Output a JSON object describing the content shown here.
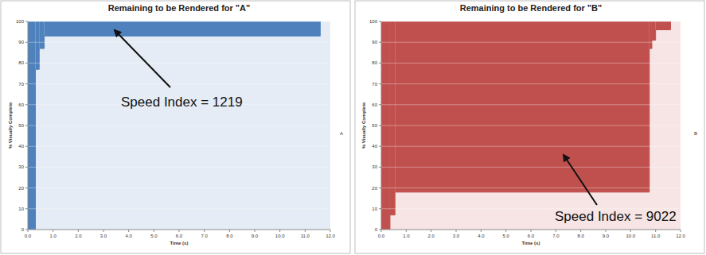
{
  "chart_data": [
    {
      "type": "step_area",
      "title": "Remaining to be Rendered for \"A\"",
      "x_label": "Time (s)",
      "y_label": "% Visually Complete",
      "annotation": "Speed Index = 1219",
      "series": [
        {
          "name": "A",
          "color": "#4f81bd",
          "x": [
            0,
            0.3,
            0.45,
            0.65,
            11.6
          ],
          "values": [
            0,
            77,
            87,
            93,
            100
          ]
        }
      ],
      "xlim": [
        0,
        12
      ],
      "ylim": [
        0,
        100
      ],
      "xticks": [
        {
          "value": 0,
          "label": "0.0"
        },
        {
          "value": 1,
          "label": "1.0"
        },
        {
          "value": 2,
          "label": "2.0"
        },
        {
          "value": 3,
          "label": "3.0"
        },
        {
          "value": 4,
          "label": "4.0"
        },
        {
          "value": 5,
          "label": "5.0"
        },
        {
          "value": 6,
          "label": "6.0"
        },
        {
          "value": 7,
          "label": "7.0"
        },
        {
          "value": 8,
          "label": "8.0"
        },
        {
          "value": 9,
          "label": "9.0"
        },
        {
          "value": 10,
          "label": "10.0"
        },
        {
          "value": 11,
          "label": "11.0"
        },
        {
          "value": 12,
          "label": "12.0"
        }
      ],
      "yticks": [
        0,
        10,
        20,
        30,
        40,
        50,
        60,
        70,
        80,
        90,
        100
      ],
      "grid": true
    },
    {
      "type": "step_area",
      "title": "Remaining to be Rendered for \"B\"",
      "x_label": "Time (s)",
      "y_label": "% Visually Complete",
      "annotation": "Speed Index = 9022",
      "series": [
        {
          "name": "B",
          "color": "#c0504d",
          "x": [
            0,
            0.35,
            0.55,
            10.75,
            10.85,
            11.0,
            11.6
          ],
          "values": [
            0,
            7,
            18,
            87,
            91,
            96,
            100
          ]
        }
      ],
      "xlim": [
        0,
        12
      ],
      "ylim": [
        0,
        100
      ],
      "xticks": [
        {
          "value": 0,
          "label": "0.0"
        },
        {
          "value": 1,
          "label": "1.0"
        },
        {
          "value": 2,
          "label": "2.0"
        },
        {
          "value": 3,
          "label": "3.0"
        },
        {
          "value": 4,
          "label": "4.0"
        },
        {
          "value": 5,
          "label": "5.0"
        },
        {
          "value": 6,
          "label": "6.0"
        },
        {
          "value": 7,
          "label": "7.0"
        },
        {
          "value": 8,
          "label": "8.0"
        },
        {
          "value": 9,
          "label": "9.0"
        },
        {
          "value": 10,
          "label": "10.0"
        },
        {
          "value": 11,
          "label": "11.0"
        },
        {
          "value": 12,
          "label": "12.0"
        }
      ],
      "yticks": [
        0,
        10,
        20,
        30,
        40,
        50,
        60,
        70,
        80,
        90,
        100
      ],
      "grid": true
    }
  ]
}
